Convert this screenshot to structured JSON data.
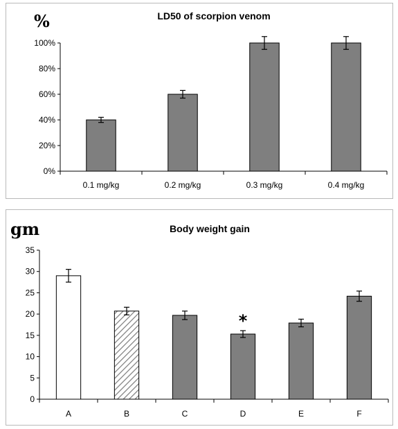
{
  "chart_data": [
    {
      "type": "bar",
      "title": "LD50 of scorpion venom",
      "ylabel": "%",
      "xlabel": "",
      "categories": [
        "0.1 mg/kg",
        "0.2 mg/kg",
        "0.3 mg/kg",
        "0.4 mg/kg"
      ],
      "values": [
        40,
        60,
        100,
        100
      ],
      "error": [
        2,
        3,
        5,
        5
      ],
      "ylim": [
        0,
        100
      ],
      "yticks": [
        "0%",
        "20%",
        "40%",
        "60%",
        "80%",
        "100%"
      ],
      "ytick_values": [
        0,
        20,
        40,
        60,
        80,
        100
      ],
      "bar_colors": [
        "#7f7f7f",
        "#7f7f7f",
        "#7f7f7f",
        "#7f7f7f"
      ],
      "grid": false,
      "legend": "none"
    },
    {
      "type": "bar",
      "title": "Body weight gain",
      "ylabel": "gm",
      "xlabel": "",
      "categories": [
        "A",
        "B",
        "C",
        "D",
        "E",
        "F"
      ],
      "values": [
        29,
        20.7,
        19.7,
        15.3,
        17.9,
        24.2
      ],
      "error": [
        1.5,
        0.9,
        1.0,
        0.8,
        0.9,
        1.2
      ],
      "ylim": [
        0,
        35
      ],
      "yticks": [
        "0",
        "5",
        "10",
        "15",
        "20",
        "25",
        "30",
        "35"
      ],
      "ytick_values": [
        0,
        5,
        10,
        15,
        20,
        25,
        30,
        35
      ],
      "bar_fills": [
        "white",
        "hatched",
        "gray",
        "gray",
        "gray",
        "gray"
      ],
      "bar_colors": [
        "#ffffff",
        "#bfbfbf",
        "#7f7f7f",
        "#7f7f7f",
        "#7f7f7f",
        "#7f7f7f"
      ],
      "annotations": [
        {
          "category": "D",
          "text": "*"
        }
      ],
      "grid": false,
      "legend": "none"
    }
  ]
}
